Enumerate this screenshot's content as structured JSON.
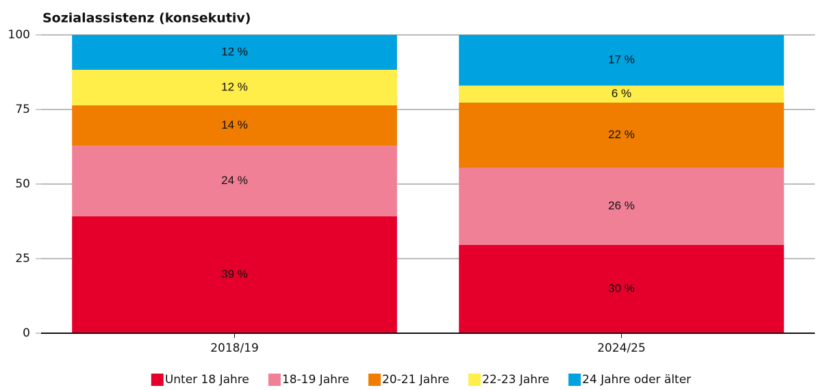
{
  "chart_data": {
    "type": "stacked_bar",
    "title": "Sozialassistenz (konsekutiv)",
    "categories": [
      "2018/19",
      "2024/25"
    ],
    "series": [
      {
        "name": "Unter 18 Jahre",
        "color": "#e4002b",
        "values": [
          39.2,
          29.6
        ],
        "value_labels": [
          "39 %",
          "30 %"
        ]
      },
      {
        "name": "18-19 Jahre",
        "color": "#f08096",
        "values": [
          23.6,
          25.9
        ],
        "value_labels": [
          "24 %",
          "26 %"
        ]
      },
      {
        "name": "20-21 Jahre",
        "color": "#f07d00",
        "values": [
          13.6,
          21.8
        ],
        "value_labels": [
          "14 %",
          "22 %"
        ]
      },
      {
        "name": "22-23 Jahre",
        "color": "#ffed4a",
        "values": [
          11.9,
          5.7
        ],
        "value_labels": [
          "12 %",
          "6 %"
        ]
      },
      {
        "name": "24 Jahre oder älter",
        "color": "#00a3e0",
        "values": [
          11.7,
          17.0
        ],
        "value_labels": [
          "12 %",
          "17 %"
        ]
      }
    ],
    "ylim": [
      0,
      100
    ],
    "yticks": [
      0,
      25,
      50,
      75,
      100
    ],
    "grid": true,
    "legend": "bottom"
  }
}
